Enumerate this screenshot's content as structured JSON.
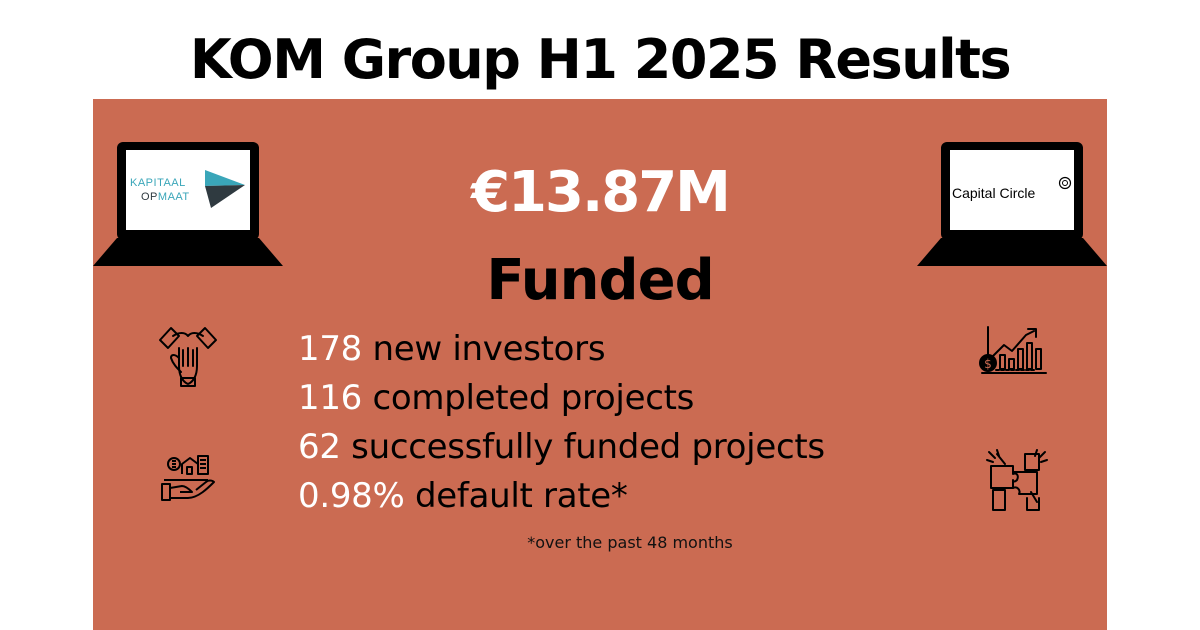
{
  "title": "KOM Group H1 2025 Results",
  "headline": {
    "amount": "€13.87M",
    "label": "Funded"
  },
  "stats": [
    {
      "number": "178",
      "text": " new investors"
    },
    {
      "number": "116",
      "text": " completed projects"
    },
    {
      "number": "62",
      "text": " successfully funded projects"
    },
    {
      "number": "0.98%",
      "text": " default rate*"
    }
  ],
  "footnote": "*over the past 48 months",
  "logos": {
    "left": {
      "line1": "KAPITAAL",
      "line2_a": "OP",
      "line2_b": "MAAT"
    },
    "right": {
      "name": "Capital Circle"
    }
  },
  "icons": [
    "handshake-icon",
    "real-estate-hand-icon",
    "financial-growth-chart-icon",
    "puzzle-hands-icon"
  ],
  "colors": {
    "panel": "#cb6b52",
    "highlight": "#ffffff",
    "text": "#000000",
    "kom_teal": "#3aa6b9",
    "kom_dark": "#2f3a40"
  }
}
